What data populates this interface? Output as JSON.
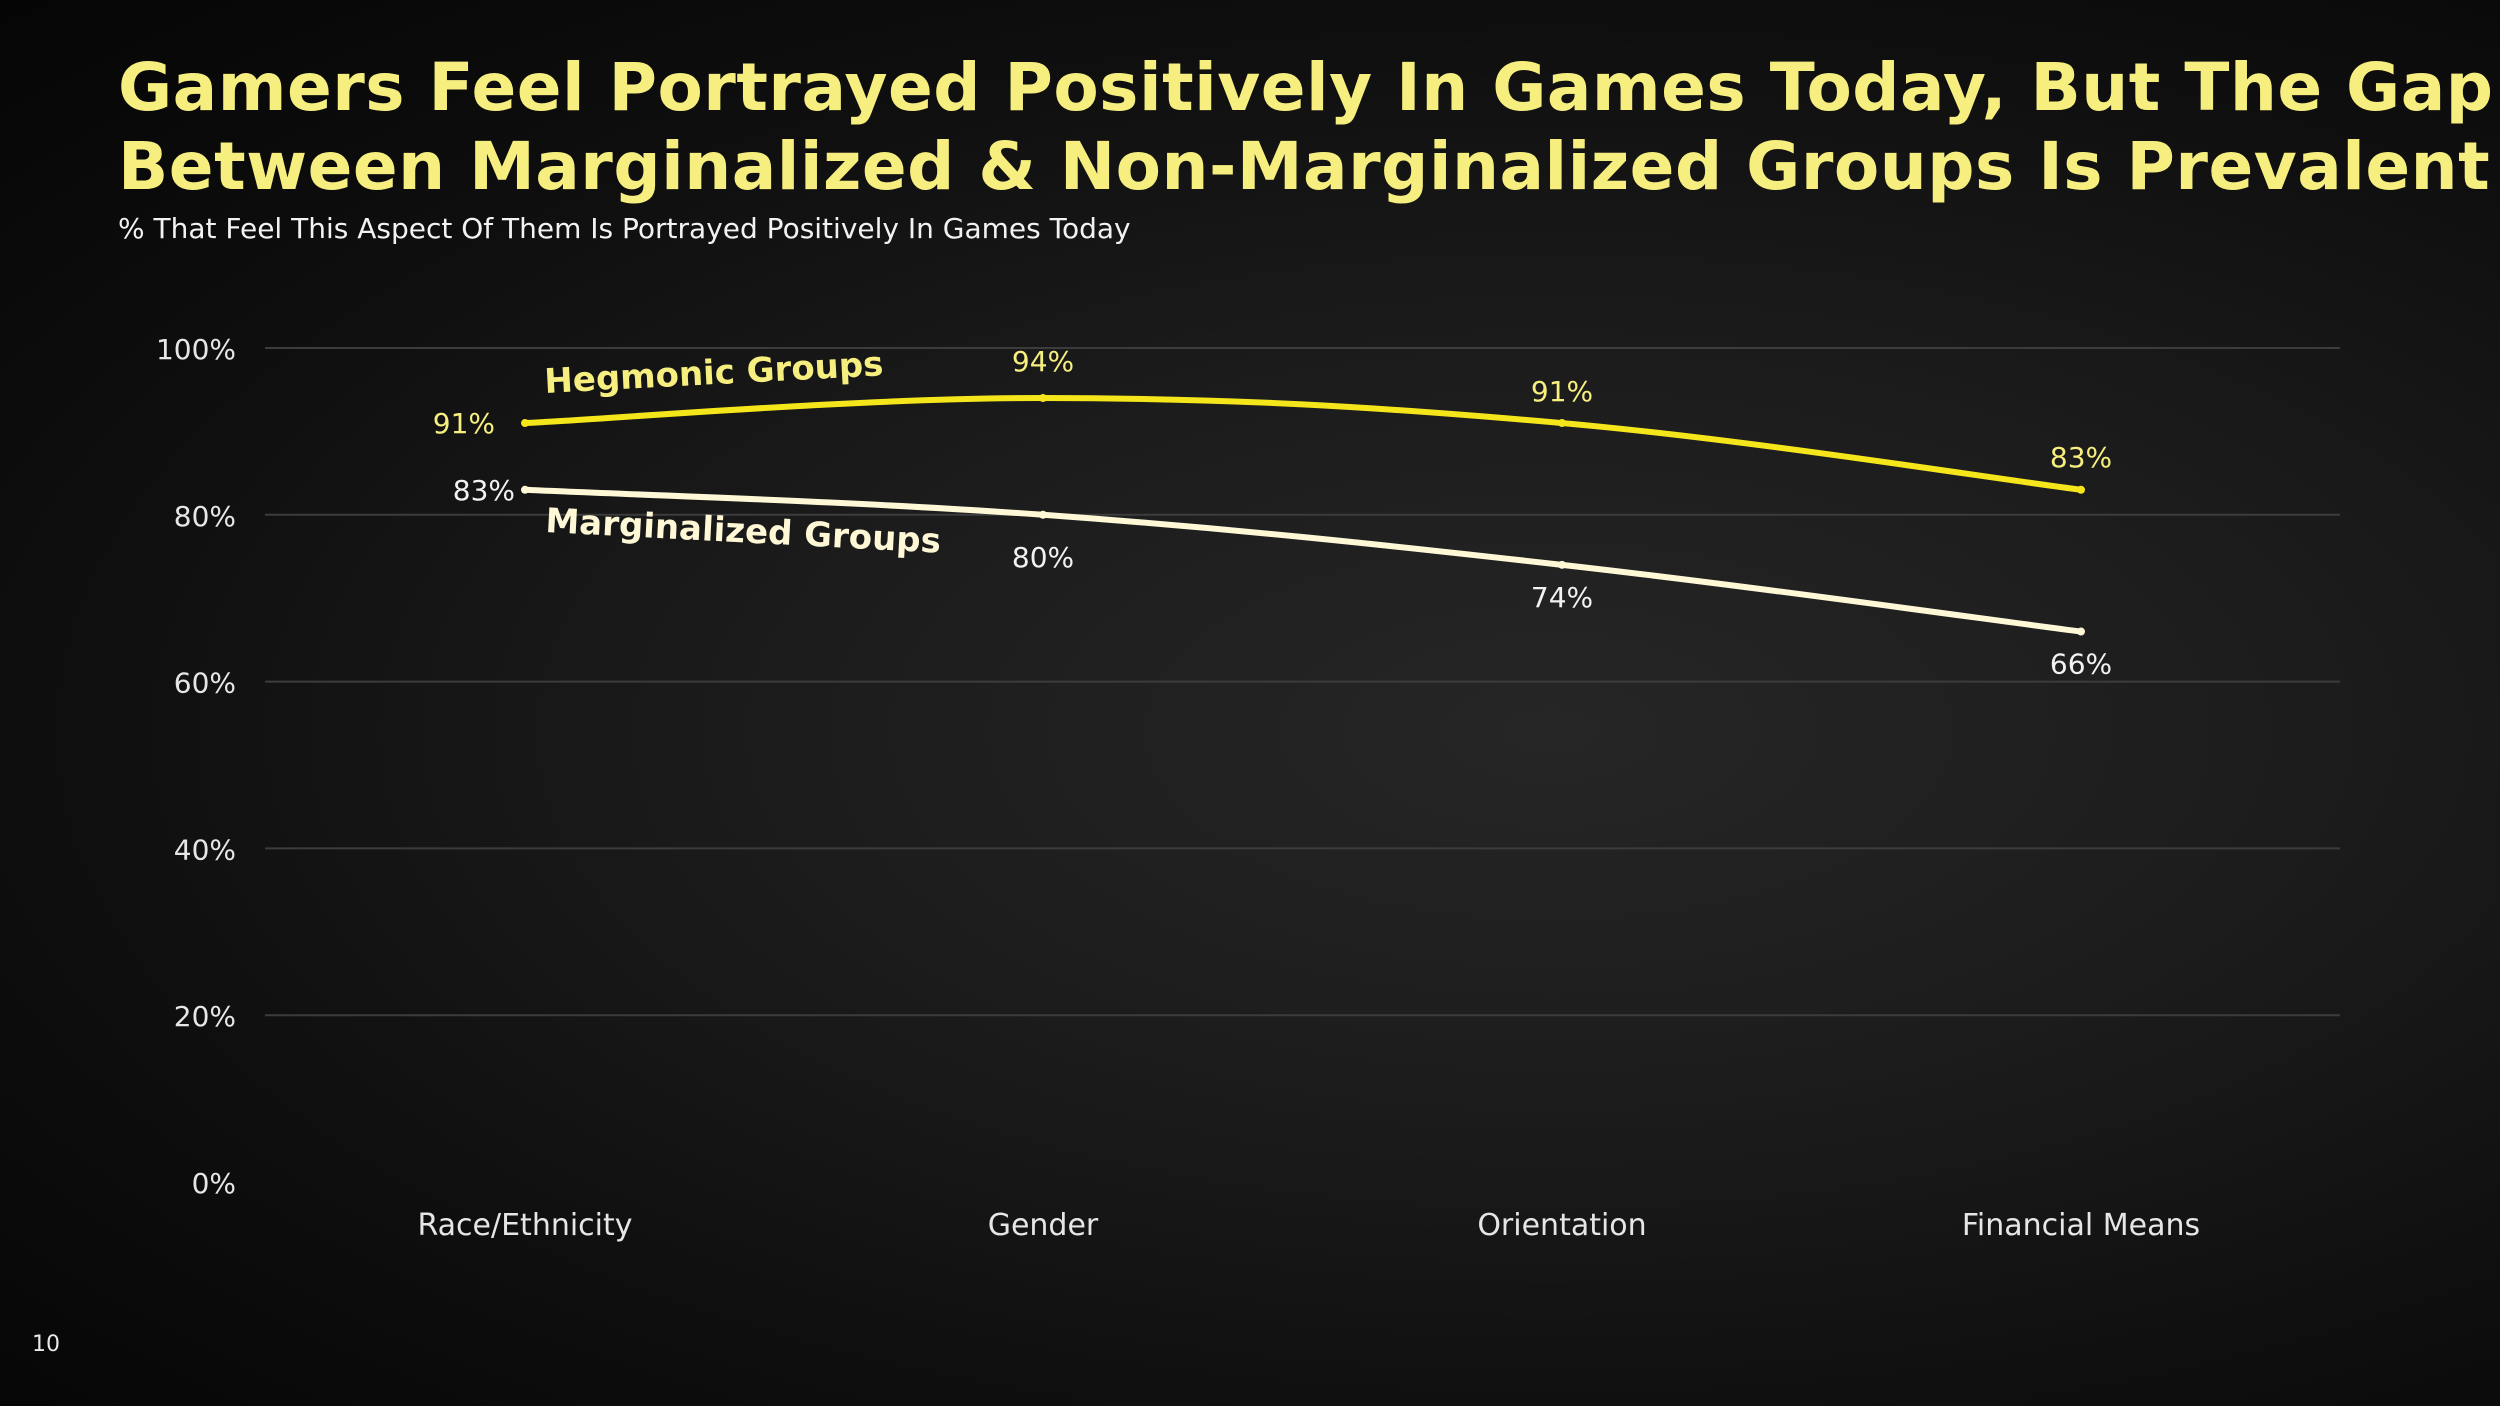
{
  "slide": {
    "title_lines": [
      "Gamers Feel Portrayed Positively In Games Today, But The Gap",
      "Between Marginalized & Non-Marginalized Groups Is Prevalent"
    ],
    "subtitle": "% That Feel This Aspect Of Them Is Portrayed Positively In Games Today",
    "page_number": "10"
  },
  "colors": {
    "hegemonic": "#f5e61c",
    "hegemonic_label": "#f6ef7f",
    "marginalized": "#fff8d6",
    "axis_text": "#e6e6e6",
    "grid": "#3c3c3c"
  },
  "chart_data": {
    "type": "line",
    "title": "Gamers Feel Portrayed Positively In Games Today, But The Gap Between Marginalized & Non-Marginalized Groups Is Prevalent",
    "subtitle": "% That Feel This Aspect Of Them Is Portrayed Positively In Games Today",
    "categories": [
      "Race/Ethnicity",
      "Gender",
      "Orientation",
      "Financial Means"
    ],
    "series": [
      {
        "name": "Hegmonic Groups",
        "key": "hegemonic",
        "values": [
          91,
          94,
          91,
          83
        ],
        "value_labels": [
          "91%",
          "94%",
          "91%",
          "83%"
        ]
      },
      {
        "name": "Marginalized Groups",
        "key": "marginalized",
        "values": [
          83,
          80,
          74,
          66
        ],
        "value_labels": [
          "83%",
          "80%",
          "74%",
          "66%"
        ]
      }
    ],
    "ylim": [
      0,
      100
    ],
    "yticks": [
      0,
      20,
      40,
      60,
      80,
      100
    ],
    "ytick_labels": [
      "0%",
      "20%",
      "40%",
      "60%",
      "80%",
      "100%"
    ],
    "grid": true,
    "legend": "inline labels near line start"
  }
}
